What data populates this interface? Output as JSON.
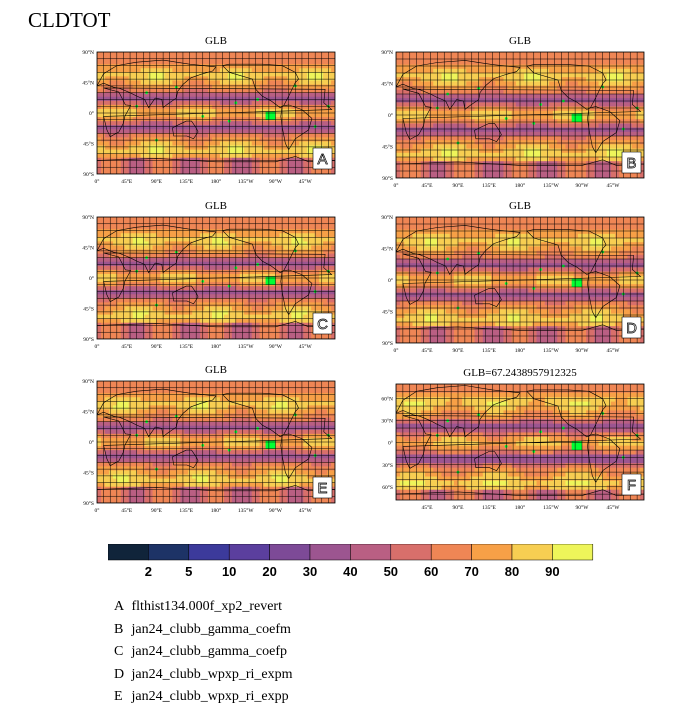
{
  "title": "CLDTOT",
  "colors": {
    "palette": [
      "#10243a",
      "#1d3366",
      "#3c3a9b",
      "#5b3f9e",
      "#7d4a97",
      "#9c5590",
      "#b95f83",
      "#d86f6b",
      "#ef8655",
      "#f7a047",
      "#f7ce52",
      "#eef55a"
    ],
    "highlight": "#00ff33",
    "grid": "#000000"
  },
  "chart_data": [
    {
      "type": "heatmap",
      "id": "A",
      "title": "GLB",
      "label": "A",
      "lat_labels": [
        "90°N",
        "45°N",
        "0°",
        "45°S",
        "90°S"
      ],
      "lon_labels": [
        "0°",
        "45°E",
        "90°E",
        "135°E",
        "180°",
        "135°W",
        "90°W",
        "45°W"
      ],
      "xlim": [
        0,
        360
      ],
      "ylim": [
        -90,
        90
      ],
      "value_range": [
        0,
        100
      ],
      "grid": true
    },
    {
      "type": "heatmap",
      "id": "B",
      "title": "GLB",
      "label": "B",
      "lat_labels": [
        "90°N",
        "45°N",
        "0°",
        "45°S",
        "90°S"
      ],
      "lon_labels": [
        "0°",
        "45°E",
        "90°E",
        "135°E",
        "180°",
        "135°W",
        "90°W",
        "45°W"
      ],
      "xlim": [
        0,
        360
      ],
      "ylim": [
        -90,
        90
      ],
      "value_range": [
        0,
        100
      ],
      "grid": true
    },
    {
      "type": "heatmap",
      "id": "C",
      "title": "GLB",
      "label": "C",
      "lat_labels": [
        "90°N",
        "45°N",
        "0°",
        "45°S",
        "90°S"
      ],
      "lon_labels": [
        "0°",
        "45°E",
        "90°E",
        "135°E",
        "180°",
        "135°W",
        "90°W",
        "45°W"
      ],
      "xlim": [
        0,
        360
      ],
      "ylim": [
        -90,
        90
      ],
      "value_range": [
        0,
        100
      ],
      "grid": true
    },
    {
      "type": "heatmap",
      "id": "D",
      "title": "GLB",
      "label": "D",
      "lat_labels": [
        "90°N",
        "45°N",
        "0°",
        "45°S",
        "90°S"
      ],
      "lon_labels": [
        "0°",
        "45°E",
        "90°E",
        "135°E",
        "180°",
        "135°W",
        "90°W",
        "45°W"
      ],
      "xlim": [
        0,
        360
      ],
      "ylim": [
        -90,
        90
      ],
      "value_range": [
        0,
        100
      ],
      "grid": true
    },
    {
      "type": "heatmap",
      "id": "E",
      "title": "GLB",
      "label": "E",
      "lat_labels": [
        "90°N",
        "45°N",
        "0°",
        "45°S",
        "90°S"
      ],
      "lon_labels": [
        "0°",
        "45°E",
        "90°E",
        "135°E",
        "180°",
        "135°W",
        "90°W",
        "45°W"
      ],
      "xlim": [
        0,
        360
      ],
      "ylim": [
        -90,
        90
      ],
      "value_range": [
        0,
        100
      ],
      "grid": true
    },
    {
      "type": "heatmap",
      "id": "F",
      "title": "GLB=67.2438957912325",
      "label": "F",
      "lat_labels": [
        "60°N",
        "30°N",
        "0°",
        "30°S",
        "60°S"
      ],
      "lon_labels": [
        "45°E",
        "90°E",
        "135°E",
        "180°",
        "135°W",
        "90°W",
        "45°W"
      ],
      "xlim": [
        0,
        360
      ],
      "ylim": [
        -90,
        90
      ],
      "value_range": [
        0,
        100
      ],
      "grid": true
    }
  ],
  "colorbar": {
    "levels": [
      "2",
      "5",
      "10",
      "20",
      "30",
      "40",
      "50",
      "60",
      "70",
      "80",
      "90"
    ],
    "boundaries": [
      2,
      5,
      10,
      20,
      30,
      40,
      50,
      60,
      70,
      80,
      90
    ]
  },
  "legend": [
    {
      "letter": "A",
      "name": "flthist134.000f_xp2_revert"
    },
    {
      "letter": "B",
      "name": "jan24_clubb_gamma_coefm"
    },
    {
      "letter": "C",
      "name": "jan24_clubb_gamma_coefp"
    },
    {
      "letter": "D",
      "name": "jan24_clubb_wpxp_ri_expm"
    },
    {
      "letter": "E",
      "name": "jan24_clubb_wpxp_ri_expp"
    }
  ]
}
